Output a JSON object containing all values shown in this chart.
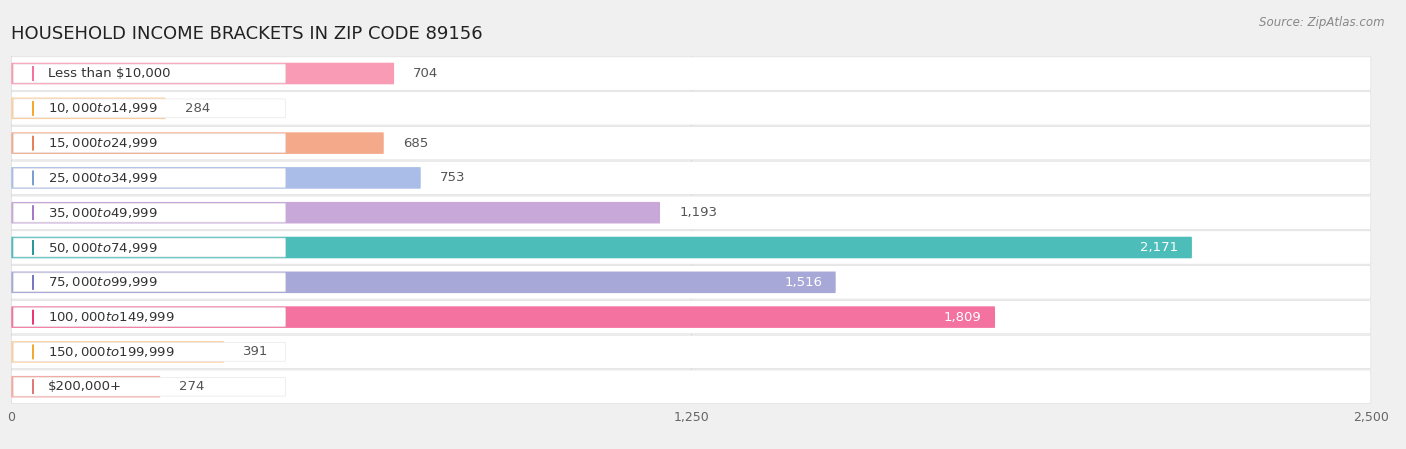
{
  "title": "HOUSEHOLD INCOME BRACKETS IN ZIP CODE 89156",
  "source": "Source: ZipAtlas.com",
  "categories": [
    "Less than $10,000",
    "$10,000 to $14,999",
    "$15,000 to $24,999",
    "$25,000 to $34,999",
    "$35,000 to $49,999",
    "$50,000 to $74,999",
    "$75,000 to $99,999",
    "$100,000 to $149,999",
    "$150,000 to $199,999",
    "$200,000+"
  ],
  "values": [
    704,
    284,
    685,
    753,
    1193,
    2171,
    1516,
    1809,
    391,
    274
  ],
  "bar_colors": [
    "#F99BB5",
    "#FBCF9E",
    "#F4A98A",
    "#AABDE8",
    "#C8A8D8",
    "#4DBDBA",
    "#A8A8D8",
    "#F472A0",
    "#FBCF9E",
    "#F4A8A0"
  ],
  "dot_colors": [
    "#F472A0",
    "#F5A830",
    "#E8805A",
    "#7A9ED0",
    "#A878C8",
    "#2A9898",
    "#7878C0",
    "#E83878",
    "#F5A830",
    "#E07878"
  ],
  "value_white": [
    false,
    false,
    false,
    false,
    false,
    true,
    true,
    true,
    false,
    false
  ],
  "xlim": [
    0,
    2500
  ],
  "xticks": [
    0,
    1250,
    2500
  ],
  "background_color": "#f0f0f0",
  "row_bg_color": "#ffffff",
  "title_fontsize": 13,
  "label_fontsize": 9.5,
  "value_fontsize": 9.5
}
